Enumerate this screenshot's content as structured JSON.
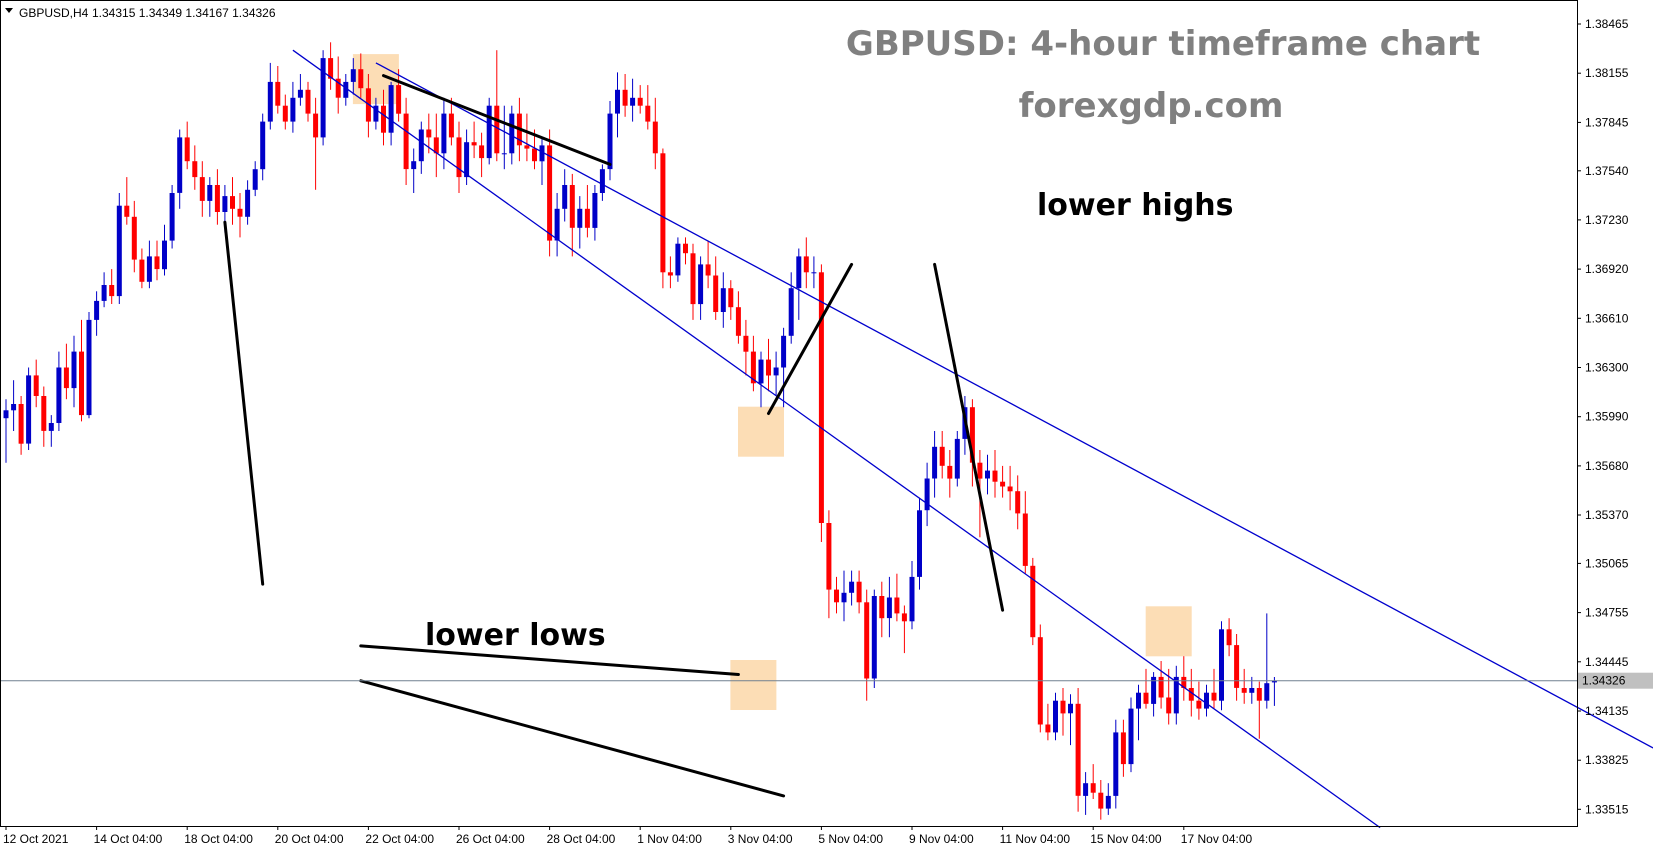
{
  "symbol_header": {
    "symbol": "GBPUSD,H4",
    "ohlc": "1.34315 1.34349 1.34167 1.34326"
  },
  "title": "GBPUSD: 4-hour timeframe chart",
  "subtitle": "forexgdp.com",
  "annotations": {
    "lower_highs": "lower highs",
    "lower_lows": "lower lows"
  },
  "current_price_label": "1.34326",
  "colors": {
    "bull": "#0000c8",
    "bear": "#ff0000",
    "channel": "#0000cd",
    "highlight": "#fcd7a8",
    "title": "#808080",
    "price_line": "#708090"
  },
  "chart_data": {
    "type": "candlestick",
    "title": "GBPUSD: 4-hour timeframe chart",
    "ylim": [
      1.3341,
      1.3861
    ],
    "y_ticks": [
      1.38465,
      1.38155,
      1.37845,
      1.3754,
      1.3723,
      1.3692,
      1.3661,
      1.363,
      1.3599,
      1.3568,
      1.3537,
      1.35065,
      1.34755,
      1.34445,
      1.34135,
      1.33825,
      1.33515
    ],
    "y_tick_labels": [
      "1.38465",
      "1.38155",
      "1.37845",
      "1.37540",
      "1.37230",
      "1.36920",
      "1.36610",
      "1.36300",
      "1.35990",
      "1.35680",
      "1.35370",
      "1.35065",
      "1.34755",
      "1.34445",
      "1.34135",
      "1.33825",
      "1.33515"
    ],
    "x_tick_labels": [
      "12 Oct 2021",
      "14 Oct 04:00",
      "18 Oct 04:00",
      "20 Oct 04:00",
      "22 Oct 04:00",
      "26 Oct 04:00",
      "28 Oct 04:00",
      "1 Nov 04:00",
      "3 Nov 04:00",
      "5 Nov 04:00",
      "9 Nov 04:00",
      "11 Nov 04:00",
      "15 Nov 04:00",
      "17 Nov 04:00"
    ],
    "x_tick_index": [
      0,
      12,
      24,
      36,
      48,
      60,
      72,
      84,
      96,
      108,
      120,
      132,
      144,
      156
    ],
    "current_price": 1.34326,
    "grid": false,
    "ohlc": [
      [
        1.3598,
        1.361,
        1.357,
        1.3603
      ],
      [
        1.3603,
        1.3622,
        1.359,
        1.3607
      ],
      [
        1.3607,
        1.3612,
        1.3575,
        1.3582
      ],
      [
        1.3582,
        1.363,
        1.3578,
        1.3625
      ],
      [
        1.3625,
        1.3635,
        1.3605,
        1.3612
      ],
      [
        1.3612,
        1.3618,
        1.358,
        1.359
      ],
      [
        1.359,
        1.36,
        1.358,
        1.3595
      ],
      [
        1.3595,
        1.364,
        1.359,
        1.363
      ],
      [
        1.363,
        1.3645,
        1.361,
        1.3617
      ],
      [
        1.3617,
        1.365,
        1.3605,
        1.364
      ],
      [
        1.364,
        1.366,
        1.3596,
        1.36
      ],
      [
        1.36,
        1.3665,
        1.3598,
        1.366
      ],
      [
        1.366,
        1.3678,
        1.365,
        1.3672
      ],
      [
        1.3672,
        1.369,
        1.3668,
        1.3682
      ],
      [
        1.3682,
        1.3692,
        1.367,
        1.3675
      ],
      [
        1.3675,
        1.374,
        1.367,
        1.3732
      ],
      [
        1.3732,
        1.375,
        1.372,
        1.3725
      ],
      [
        1.3725,
        1.3735,
        1.369,
        1.3698
      ],
      [
        1.3698,
        1.3705,
        1.368,
        1.3684
      ],
      [
        1.3684,
        1.371,
        1.368,
        1.37
      ],
      [
        1.37,
        1.371,
        1.3685,
        1.3692
      ],
      [
        1.3692,
        1.372,
        1.3688,
        1.371
      ],
      [
        1.371,
        1.3745,
        1.3705,
        1.374
      ],
      [
        1.374,
        1.378,
        1.373,
        1.3775
      ],
      [
        1.3775,
        1.3785,
        1.3755,
        1.376
      ],
      [
        1.376,
        1.377,
        1.3742,
        1.375
      ],
      [
        1.375,
        1.376,
        1.3725,
        1.3735
      ],
      [
        1.3735,
        1.375,
        1.3725,
        1.3745
      ],
      [
        1.3745,
        1.3755,
        1.372,
        1.3728
      ],
      [
        1.3728,
        1.3745,
        1.3715,
        1.3738
      ],
      [
        1.3738,
        1.375,
        1.372,
        1.373
      ],
      [
        1.373,
        1.374,
        1.3712,
        1.3725
      ],
      [
        1.3725,
        1.3748,
        1.372,
        1.3742
      ],
      [
        1.3742,
        1.376,
        1.3738,
        1.3755
      ],
      [
        1.3755,
        1.379,
        1.3748,
        1.3785
      ],
      [
        1.3785,
        1.3822,
        1.378,
        1.381
      ],
      [
        1.381,
        1.382,
        1.379,
        1.3795
      ],
      [
        1.3795,
        1.3802,
        1.378,
        1.3785
      ],
      [
        1.3785,
        1.381,
        1.3778,
        1.38
      ],
      [
        1.38,
        1.3815,
        1.3795,
        1.3805
      ],
      [
        1.3805,
        1.381,
        1.3785,
        1.379
      ],
      [
        1.379,
        1.38,
        1.3742,
        1.3775
      ],
      [
        1.3775,
        1.383,
        1.377,
        1.3825
      ],
      [
        1.3825,
        1.3835,
        1.3805,
        1.3812
      ],
      [
        1.3812,
        1.3826,
        1.379,
        1.38
      ],
      [
        1.38,
        1.3815,
        1.3795,
        1.381
      ],
      [
        1.381,
        1.3825,
        1.3802,
        1.3818
      ],
      [
        1.3818,
        1.3828,
        1.38,
        1.3806
      ],
      [
        1.3806,
        1.3815,
        1.3775,
        1.3785
      ],
      [
        1.3785,
        1.38,
        1.378,
        1.3795
      ],
      [
        1.3795,
        1.3805,
        1.377,
        1.3778
      ],
      [
        1.3778,
        1.381,
        1.377,
        1.3808
      ],
      [
        1.3808,
        1.3818,
        1.3785,
        1.379
      ],
      [
        1.379,
        1.38,
        1.3745,
        1.3755
      ],
      [
        1.3755,
        1.3768,
        1.374,
        1.376
      ],
      [
        1.376,
        1.3785,
        1.3752,
        1.378
      ],
      [
        1.378,
        1.379,
        1.3765,
        1.3775
      ],
      [
        1.3775,
        1.379,
        1.375,
        1.3765
      ],
      [
        1.3765,
        1.38,
        1.3755,
        1.379
      ],
      [
        1.379,
        1.38,
        1.377,
        1.3775
      ],
      [
        1.3775,
        1.3785,
        1.374,
        1.375
      ],
      [
        1.375,
        1.378,
        1.3745,
        1.3772
      ],
      [
        1.3772,
        1.3785,
        1.3762,
        1.377
      ],
      [
        1.377,
        1.3778,
        1.375,
        1.3762
      ],
      [
        1.3762,
        1.38,
        1.3758,
        1.3795
      ],
      [
        1.3795,
        1.383,
        1.376,
        1.3765
      ],
      [
        1.3765,
        1.3795,
        1.3755,
        1.3765
      ],
      [
        1.3765,
        1.3795,
        1.3758,
        1.379
      ],
      [
        1.379,
        1.38,
        1.376,
        1.377
      ],
      [
        1.377,
        1.379,
        1.376,
        1.3768
      ],
      [
        1.3768,
        1.378,
        1.3755,
        1.376
      ],
      [
        1.376,
        1.3775,
        1.3745,
        1.377
      ],
      [
        1.377,
        1.378,
        1.37,
        1.371
      ],
      [
        1.371,
        1.374,
        1.37,
        1.373
      ],
      [
        1.373,
        1.3755,
        1.3722,
        1.3745
      ],
      [
        1.3745,
        1.3752,
        1.37,
        1.3718
      ],
      [
        1.3718,
        1.3738,
        1.3705,
        1.373
      ],
      [
        1.373,
        1.3745,
        1.3712,
        1.3718
      ],
      [
        1.3718,
        1.3745,
        1.371,
        1.374
      ],
      [
        1.374,
        1.3758,
        1.3735,
        1.3755
      ],
      [
        1.3755,
        1.3798,
        1.3748,
        1.379
      ],
      [
        1.379,
        1.3816,
        1.3775,
        1.3805
      ],
      [
        1.3805,
        1.3815,
        1.3788,
        1.3795
      ],
      [
        1.3795,
        1.3812,
        1.3785,
        1.38
      ],
      [
        1.38,
        1.3808,
        1.379,
        1.3795
      ],
      [
        1.3795,
        1.3808,
        1.378,
        1.3785
      ],
      [
        1.3785,
        1.38,
        1.3755,
        1.3765
      ],
      [
        1.3765,
        1.3768,
        1.368,
        1.369
      ],
      [
        1.369,
        1.37,
        1.368,
        1.3688
      ],
      [
        1.3688,
        1.3712,
        1.3684,
        1.3708
      ],
      [
        1.3708,
        1.3712,
        1.3695,
        1.3702
      ],
      [
        1.3702,
        1.3708,
        1.366,
        1.367
      ],
      [
        1.367,
        1.37,
        1.366,
        1.3695
      ],
      [
        1.3695,
        1.371,
        1.368,
        1.3688
      ],
      [
        1.3688,
        1.37,
        1.366,
        1.3665
      ],
      [
        1.3665,
        1.369,
        1.3655,
        1.368
      ],
      [
        1.368,
        1.3685,
        1.366,
        1.3668
      ],
      [
        1.3668,
        1.3678,
        1.3645,
        1.365
      ],
      [
        1.365,
        1.366,
        1.3625,
        1.364
      ],
      [
        1.364,
        1.365,
        1.3615,
        1.362
      ],
      [
        1.362,
        1.364,
        1.3605,
        1.3635
      ],
      [
        1.3635,
        1.3648,
        1.3615,
        1.3625
      ],
      [
        1.3625,
        1.364,
        1.3612,
        1.363
      ],
      [
        1.363,
        1.3655,
        1.3605,
        1.365
      ],
      [
        1.365,
        1.369,
        1.3645,
        1.368
      ],
      [
        1.368,
        1.3705,
        1.366,
        1.37
      ],
      [
        1.37,
        1.3712,
        1.368,
        1.369
      ],
      [
        1.369,
        1.37,
        1.368,
        1.369
      ],
      [
        1.369,
        1.3695,
        1.352,
        1.3532
      ],
      [
        1.3532,
        1.354,
        1.3472,
        1.349
      ],
      [
        1.349,
        1.3498,
        1.3475,
        1.3482
      ],
      [
        1.3482,
        1.3502,
        1.347,
        1.3488
      ],
      [
        1.3488,
        1.3502,
        1.348,
        1.3495
      ],
      [
        1.3495,
        1.3502,
        1.3475,
        1.3482
      ],
      [
        1.3482,
        1.349,
        1.342,
        1.3434
      ],
      [
        1.3434,
        1.349,
        1.3428,
        1.3486
      ],
      [
        1.3486,
        1.3495,
        1.346,
        1.3472
      ],
      [
        1.3472,
        1.3498,
        1.346,
        1.3485
      ],
      [
        1.3485,
        1.35,
        1.347,
        1.3475
      ],
      [
        1.3475,
        1.348,
        1.345,
        1.347
      ],
      [
        1.347,
        1.3508,
        1.3465,
        1.3498
      ],
      [
        1.3498,
        1.3548,
        1.349,
        1.354
      ],
      [
        1.354,
        1.357,
        1.353,
        1.356
      ],
      [
        1.356,
        1.359,
        1.3548,
        1.358
      ],
      [
        1.358,
        1.359,
        1.356,
        1.3568
      ],
      [
        1.3568,
        1.3578,
        1.3548,
        1.356
      ],
      [
        1.356,
        1.359,
        1.3555,
        1.3585
      ],
      [
        1.3585,
        1.3612,
        1.3575,
        1.3605
      ],
      [
        1.3605,
        1.361,
        1.3555,
        1.357
      ],
      [
        1.357,
        1.3578,
        1.3523,
        1.356
      ],
      [
        1.356,
        1.3575,
        1.355,
        1.3565
      ],
      [
        1.3565,
        1.3578,
        1.3548,
        1.3558
      ],
      [
        1.3558,
        1.3568,
        1.3548,
        1.3555
      ],
      [
        1.3555,
        1.3568,
        1.354,
        1.3552
      ],
      [
        1.3552,
        1.3562,
        1.3528,
        1.3538
      ],
      [
        1.3538,
        1.3552,
        1.35,
        1.3505
      ],
      [
        1.3505,
        1.351,
        1.3455,
        1.346
      ],
      [
        1.346,
        1.3468,
        1.34,
        1.3405
      ],
      [
        1.3405,
        1.3418,
        1.3395,
        1.34
      ],
      [
        1.34,
        1.3425,
        1.3395,
        1.342
      ],
      [
        1.342,
        1.3428,
        1.3398,
        1.3412
      ],
      [
        1.3412,
        1.3424,
        1.3392,
        1.3418
      ],
      [
        1.3418,
        1.3428,
        1.335,
        1.336
      ],
      [
        1.336,
        1.3375,
        1.3348,
        1.3368
      ],
      [
        1.3368,
        1.338,
        1.3358,
        1.3362
      ],
      [
        1.3362,
        1.337,
        1.3345,
        1.3352
      ],
      [
        1.3352,
        1.3368,
        1.3348,
        1.336
      ],
      [
        1.336,
        1.3408,
        1.3352,
        1.34
      ],
      [
        1.34,
        1.3408,
        1.3372,
        1.338
      ],
      [
        1.338,
        1.3422,
        1.3375,
        1.3415
      ],
      [
        1.3415,
        1.343,
        1.3395,
        1.3425
      ],
      [
        1.3425,
        1.344,
        1.3415,
        1.3418
      ],
      [
        1.3418,
        1.3438,
        1.341,
        1.3435
      ],
      [
        1.3435,
        1.3445,
        1.3415,
        1.3422
      ],
      [
        1.3422,
        1.344,
        1.3405,
        1.3412
      ],
      [
        1.3412,
        1.3442,
        1.3405,
        1.3435
      ],
      [
        1.3435,
        1.3448,
        1.342,
        1.3428
      ],
      [
        1.3428,
        1.344,
        1.341,
        1.342
      ],
      [
        1.342,
        1.3432,
        1.3408,
        1.3415
      ],
      [
        1.3415,
        1.343,
        1.341,
        1.3425
      ],
      [
        1.3425,
        1.344,
        1.3415,
        1.342
      ],
      [
        1.342,
        1.347,
        1.3414,
        1.3465
      ],
      [
        1.3465,
        1.3472,
        1.3448,
        1.3455
      ],
      [
        1.3455,
        1.3462,
        1.342,
        1.3428
      ],
      [
        1.3428,
        1.344,
        1.3418,
        1.3425
      ],
      [
        1.3425,
        1.3435,
        1.3418,
        1.3428
      ],
      [
        1.3428,
        1.3432,
        1.3396,
        1.342
      ],
      [
        1.342,
        1.3475,
        1.3415,
        1.3431
      ],
      [
        1.34315,
        1.34349,
        1.34167,
        1.34326
      ]
    ],
    "channel_upper": [
      [
        49,
        1.3822
      ],
      [
        230,
        1.336
      ]
    ],
    "channel_lower": [
      [
        38,
        1.383
      ],
      [
        182,
        1.334
      ]
    ],
    "highlight_zones": [
      [
        49,
        1.38118
      ],
      [
        100,
        1.35895
      ],
      [
        99,
        1.34299
      ],
      [
        154,
        1.34637
      ]
    ],
    "annotation_lines": [
      [
        [
          50,
          1.3814
        ],
        [
          80,
          1.3758
        ]
      ],
      [
        [
          112,
          1.3695
        ],
        [
          101,
          1.3601
        ]
      ],
      [
        [
          123,
          1.3695
        ],
        [
          132,
          1.3477
        ]
      ],
      [
        [
          29,
          1.37215
        ],
        [
          34,
          1.34935
        ]
      ],
      [
        [
          47,
          1.34545
        ],
        [
          97,
          1.34365
        ]
      ],
      [
        [
          47,
          1.34325
        ],
        [
          103,
          1.336
        ]
      ]
    ]
  }
}
